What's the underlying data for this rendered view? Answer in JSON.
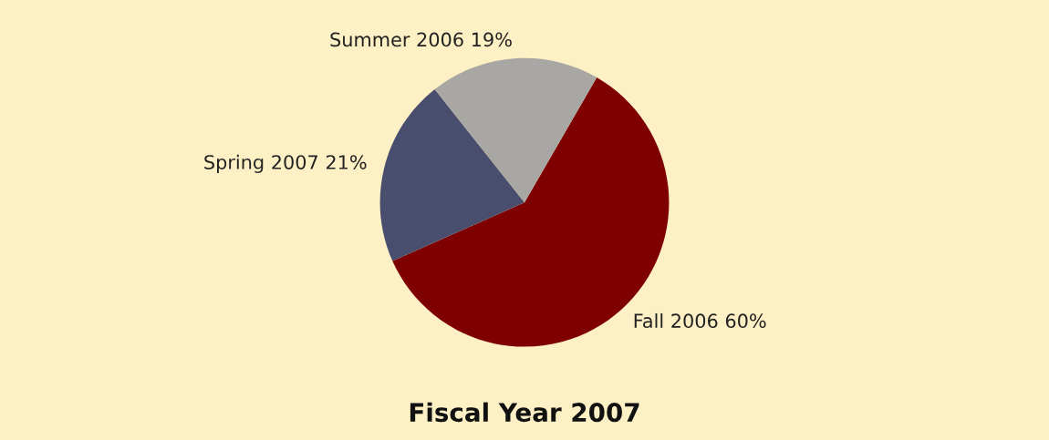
{
  "chart_data": {
    "type": "pie",
    "title": "Fiscal Year 2007",
    "categories": [
      "Fall 2006",
      "Spring 2007",
      "Summer 2006"
    ],
    "values": [
      60,
      21,
      19
    ],
    "value_labels": [
      "60%",
      "21%",
      "19%"
    ],
    "colors": [
      "#7f0000",
      "#4a4e6e",
      "#a9a7a3"
    ],
    "data_labels": true
  }
}
